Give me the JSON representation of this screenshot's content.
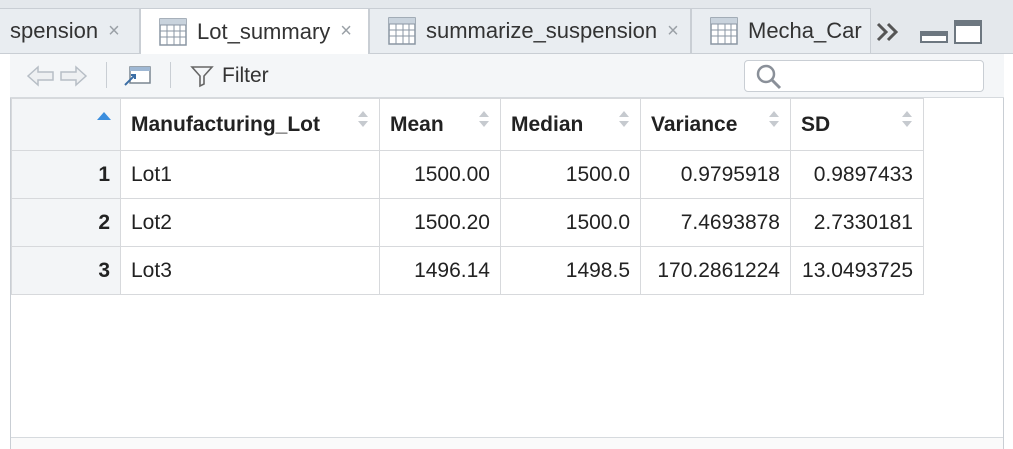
{
  "tabs": [
    {
      "label": "spension",
      "close": "×",
      "active": false
    },
    {
      "label": "Lot_summary",
      "close": "×",
      "active": true
    },
    {
      "label": "summarize_suspension",
      "close": "×",
      "active": false
    },
    {
      "label": "Mecha_Car",
      "close": "×",
      "active": false
    }
  ],
  "toolbar": {
    "filter_label": "Filter",
    "search_placeholder": ""
  },
  "table": {
    "columns": [
      "",
      "Manufacturing_Lot",
      "Mean",
      "Median",
      "Variance",
      "SD"
    ],
    "rows": [
      {
        "index": "1",
        "lot": "Lot1",
        "mean": "1500.00",
        "median": "1500.0",
        "variance": "0.9795918",
        "sd": "0.9897433"
      },
      {
        "index": "2",
        "lot": "Lot2",
        "mean": "1500.20",
        "median": "1500.0",
        "variance": "7.4693878",
        "sd": "2.7330181"
      },
      {
        "index": "3",
        "lot": "Lot3",
        "mean": "1496.14",
        "median": "1498.5",
        "variance": "170.2861224",
        "sd": "13.0493725"
      }
    ]
  },
  "colors": {
    "accent": "#3b8ede",
    "border": "#d7d9dc",
    "tabbar": "#e4e8ec"
  }
}
